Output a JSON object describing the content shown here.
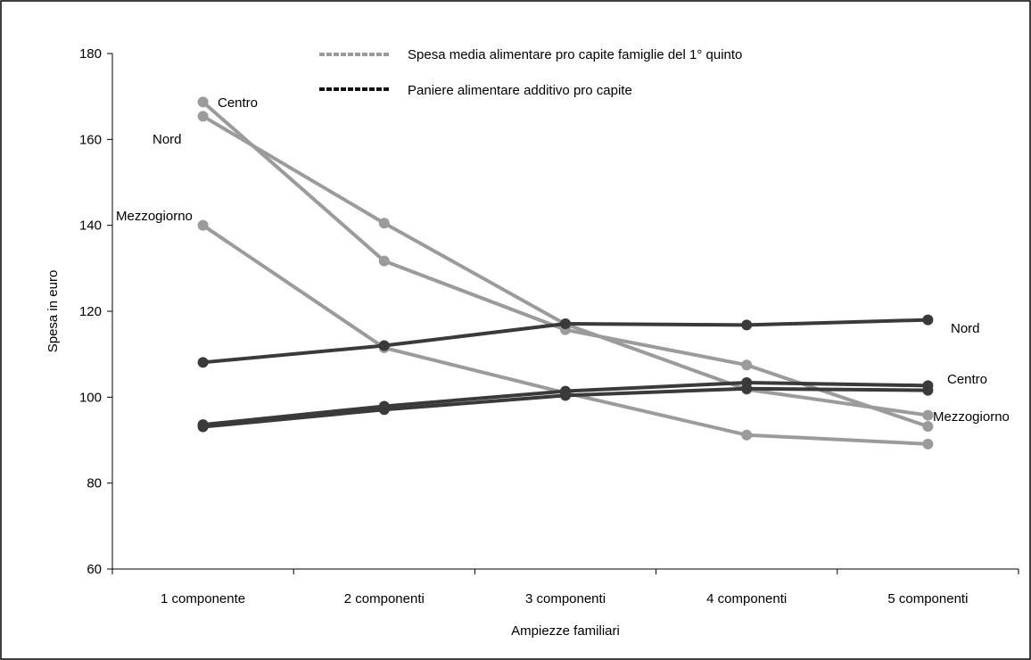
{
  "chart_data": {
    "type": "line",
    "title": "",
    "xlabel": "Ampiezze familiari",
    "ylabel": "Spesa in euro",
    "categories": [
      "1  componente",
      "2  componenti",
      "3  componenti",
      "4  componenti",
      "5  componenti"
    ],
    "ylim": [
      60,
      180
    ],
    "yticks": [
      60,
      80,
      100,
      120,
      140,
      160,
      180
    ],
    "grid": false,
    "legend_position": "top-center",
    "legend": [
      {
        "label": "Spesa media alimentare pro capite famiglie del 1° quinto",
        "color": "#9b9b9b",
        "style": "dashed"
      },
      {
        "label": "Paniere  alimentare additivo  pro capite",
        "color": "#111111",
        "style": "dashed"
      }
    ],
    "series": [
      {
        "group": "spesa",
        "label": "Centro",
        "color": "#9b9b9b",
        "values": [
          168.7,
          131.7,
          115.7,
          107.5,
          93.2
        ]
      },
      {
        "group": "spesa",
        "label": "Nord",
        "color": "#9b9b9b",
        "values": [
          165.4,
          140.5,
          117.0,
          101.8,
          95.8
        ]
      },
      {
        "group": "spesa",
        "label": "Mezzogiorno",
        "color": "#9b9b9b",
        "values": [
          140.0,
          111.5,
          101.0,
          91.2,
          89.1
        ]
      },
      {
        "group": "paniere",
        "label": "Nord",
        "color": "#3a3a3a",
        "values": [
          108.1,
          112.0,
          117.1,
          116.8,
          118.0
        ]
      },
      {
        "group": "paniere",
        "label": "Centro",
        "color": "#3a3a3a",
        "values": [
          93.6,
          97.9,
          101.4,
          103.4,
          102.7
        ]
      },
      {
        "group": "paniere",
        "label": "Mezzogiorno",
        "color": "#3a3a3a",
        "values": [
          93.1,
          97.1,
          100.4,
          102.0,
          101.6
        ]
      }
    ],
    "series_labels": [
      {
        "text": "Centro",
        "anchor": "spesa-left"
      },
      {
        "text": "Nord",
        "anchor": "spesa-left"
      },
      {
        "text": "Mezzogiorno",
        "anchor": "spesa-left"
      },
      {
        "text": "Nord",
        "anchor": "paniere-right"
      },
      {
        "text": "Centro",
        "anchor": "paniere-right"
      },
      {
        "text": "Mezzogiorno",
        "anchor": "paniere-right"
      }
    ]
  }
}
